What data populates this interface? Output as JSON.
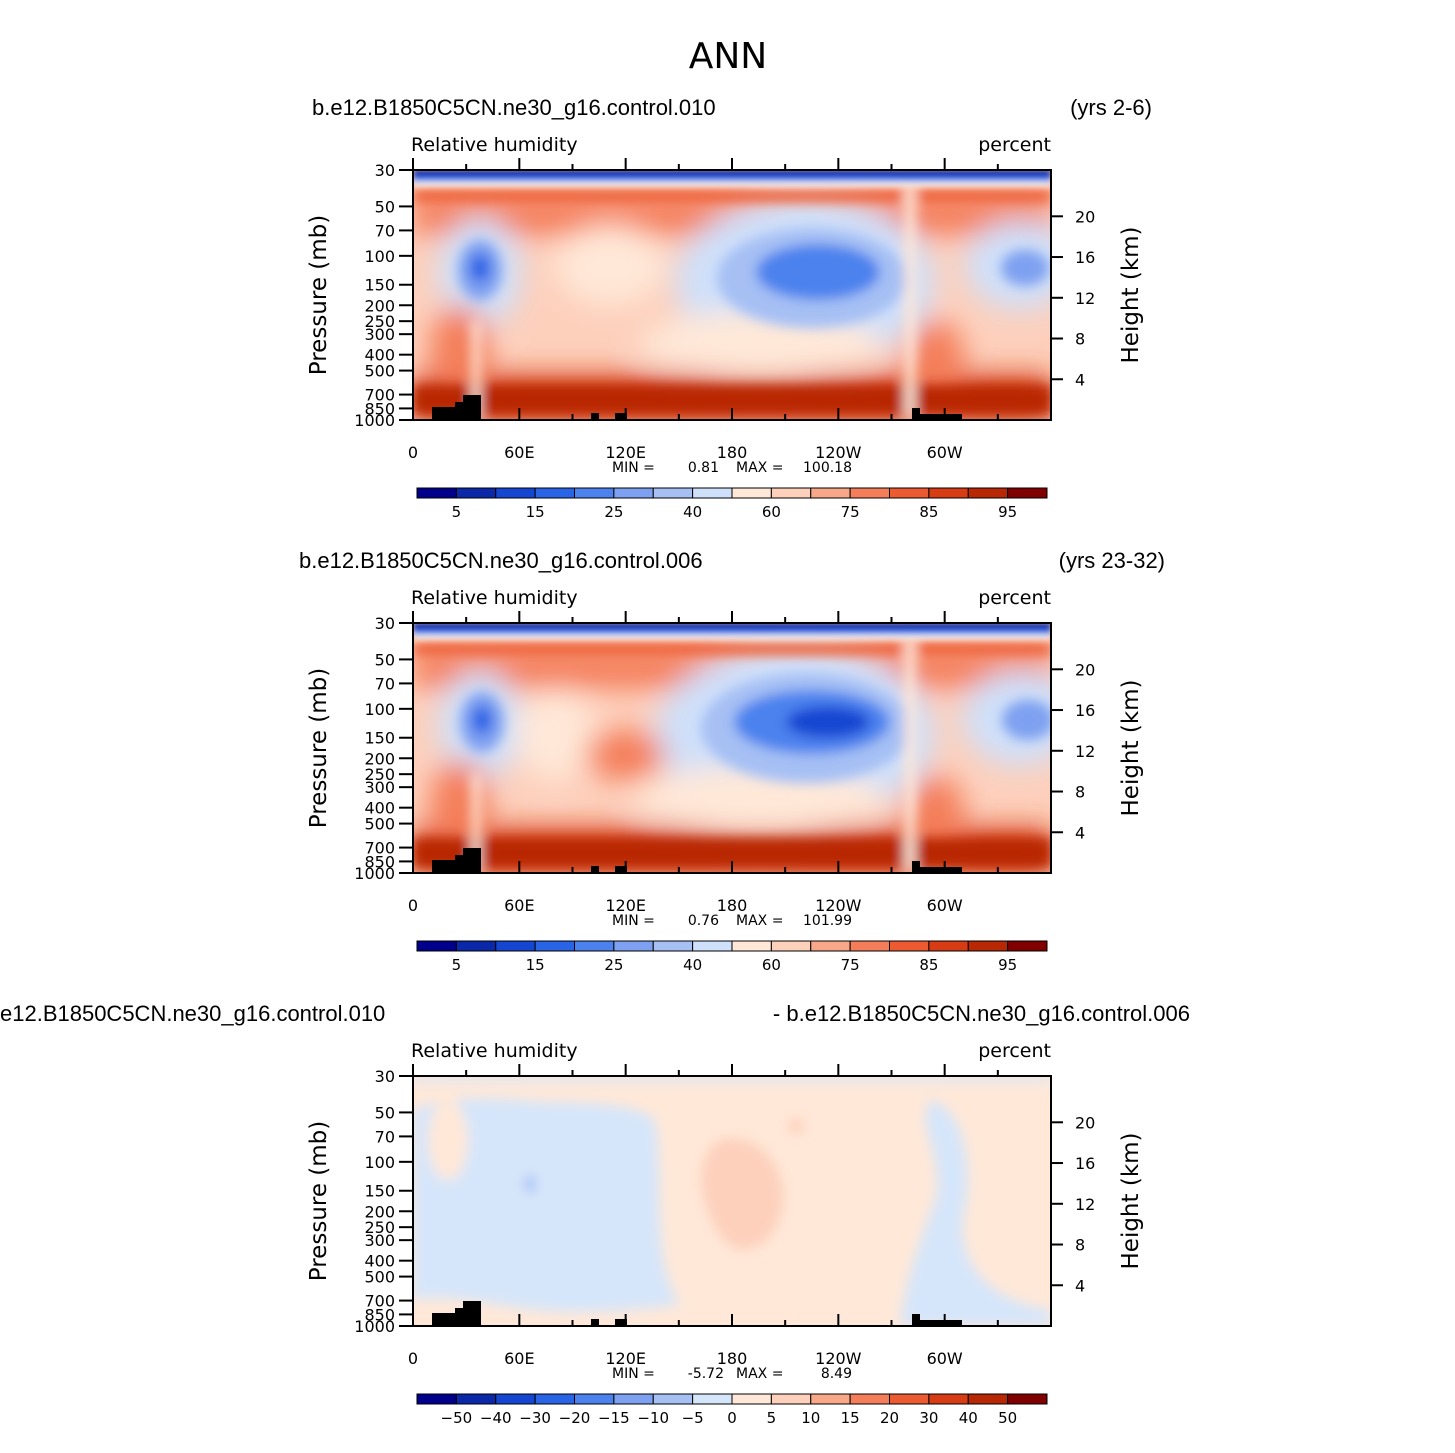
{
  "figure": {
    "title": "ANN"
  },
  "colors": {
    "abs_fills": [
      "#00008b",
      "#0a28a8",
      "#1446d2",
      "#2a64e6",
      "#4c82ee",
      "#7ea0f0",
      "#a6c0f4",
      "#cfe0fa",
      "#ffe8d8",
      "#fdd0bc",
      "#f8a888",
      "#f47e5a",
      "#ec5a32",
      "#d83c14",
      "#b82804",
      "#800000"
    ],
    "diff_fills": [
      "#00008b",
      "#0a28a8",
      "#1446d2",
      "#2a64e6",
      "#4c82ee",
      "#7ea0f0",
      "#a6c0f4",
      "#d6e6fa",
      "#ffe8d8",
      "#fdd0bc",
      "#f8a888",
      "#f47e5a",
      "#ec5a32",
      "#d83c14",
      "#b82804",
      "#800000"
    ],
    "topography": "#000000"
  },
  "chart_data": [
    {
      "type": "heatmap",
      "case_name": "b.e12.B1850C5CN.ne30_g16.control.010",
      "years": "(yrs 2-6)",
      "left_label": "Relative  humidity",
      "right_label": "percent",
      "ylabel": "Pressure  (mb)",
      "ylabel_right": "Height  (km)",
      "x_ticks": [
        "0",
        "60E",
        "120E",
        "180",
        "120W",
        "60W"
      ],
      "y_ticks": [
        "30",
        "50",
        "70",
        "100",
        "150",
        "200",
        "250",
        "300",
        "400",
        "500",
        "700",
        "850",
        "1000"
      ],
      "y_ticks_right": [
        "20",
        "16",
        "12",
        "8",
        "4"
      ],
      "min_label": "MIN =",
      "min": "0.81",
      "max_label": "MAX =",
      "max": "100.18",
      "colorbar_labels": [
        "5",
        "15",
        "25",
        "40",
        "60",
        "75",
        "85",
        "95"
      ]
    },
    {
      "type": "heatmap",
      "case_name": "b.e12.B1850C5CN.ne30_g16.control.006",
      "years": "(yrs 23-32)",
      "left_label": "Relative  humidity",
      "right_label": "percent",
      "ylabel": "Pressure  (mb)",
      "ylabel_right": "Height  (km)",
      "x_ticks": [
        "0",
        "60E",
        "120E",
        "180",
        "120W",
        "60W"
      ],
      "y_ticks": [
        "30",
        "50",
        "70",
        "100",
        "150",
        "200",
        "250",
        "300",
        "400",
        "500",
        "700",
        "850",
        "1000"
      ],
      "y_ticks_right": [
        "20",
        "16",
        "12",
        "8",
        "4"
      ],
      "min_label": "MIN =",
      "min": "0.76",
      "max_label": "MAX =",
      "max": "101.99",
      "colorbar_labels": [
        "5",
        "15",
        "25",
        "40",
        "60",
        "75",
        "85",
        "95"
      ]
    },
    {
      "type": "heatmap",
      "case_left": "e12.B1850C5CN.ne30_g16.control.010",
      "case_right": "- b.e12.B1850C5CN.ne30_g16.control.006",
      "left_label": "Relative  humidity",
      "right_label": "percent",
      "ylabel": "Pressure  (mb)",
      "ylabel_right": "Height  (km)",
      "x_ticks": [
        "0",
        "60E",
        "120E",
        "180",
        "120W",
        "60W"
      ],
      "y_ticks": [
        "30",
        "50",
        "70",
        "100",
        "150",
        "200",
        "250",
        "300",
        "400",
        "500",
        "700",
        "850",
        "1000"
      ],
      "y_ticks_right": [
        "20",
        "16",
        "12",
        "8",
        "4"
      ],
      "min_label": "MIN =",
      "min": "-5.72",
      "max_label": "MAX =",
      "max": "8.49",
      "colorbar_labels": [
        "−50",
        "−40",
        "−30",
        "−20",
        "−15",
        "−10",
        "−5",
        "0",
        "5",
        "10",
        "15",
        "20",
        "30",
        "40",
        "50"
      ]
    }
  ]
}
